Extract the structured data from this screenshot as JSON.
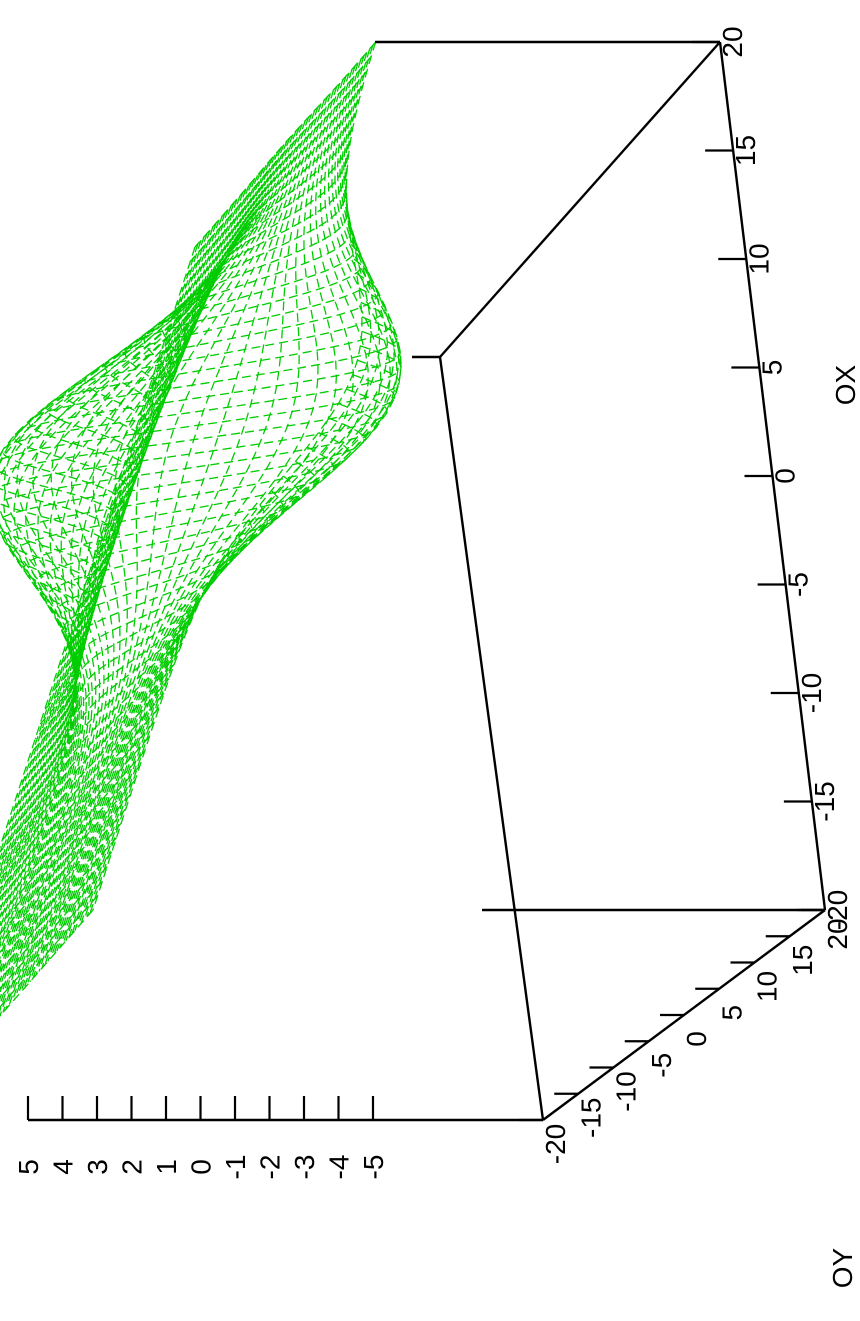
{
  "chart_data": {
    "type": "surface",
    "title": "",
    "xlabel": "OX",
    "ylabel": "OY",
    "zlabel": "",
    "x_range": [
      -20,
      20
    ],
    "y_range": [
      -20,
      20
    ],
    "z_range": [
      -5,
      5
    ],
    "x_ticks": [
      "-20",
      "-15",
      "-10",
      "-5",
      "0",
      "5",
      "10",
      "15",
      "20"
    ],
    "y_ticks": [
      "-20",
      "-15",
      "-10",
      "-5",
      "0",
      "5",
      "10",
      "15",
      "20"
    ],
    "z_ticks": [
      "5",
      "4",
      "3",
      "2",
      "1",
      "0",
      "-1",
      "-2",
      "-3",
      "-4",
      "-5"
    ],
    "mesh_color": "#00cc00",
    "grid_lines": 60,
    "surface": {
      "features": [
        {
          "kind": "peak",
          "x": -5,
          "y": 0,
          "height": 5
        },
        {
          "kind": "trough",
          "x": -5,
          "y": -15,
          "height": -4
        }
      ]
    },
    "orientation": "rotated 90 degrees clockwise"
  }
}
